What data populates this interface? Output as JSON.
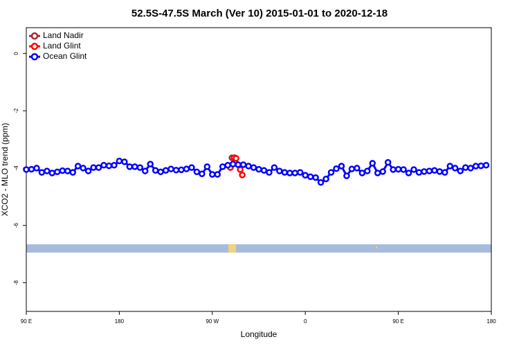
{
  "chart_data": {
    "type": "line",
    "title": "52.5S-47.5S March (Ver 10)   2015-01-01 to 2020-12-18",
    "x_label": "Longitude",
    "y_label": "XCO2 - MLO trend (ppm)",
    "xlim": [
      90,
      540
    ],
    "ylim": [
      -9,
      0.9
    ],
    "xticks": [
      {
        "value": 90,
        "label": "90 E"
      },
      180,
      {
        "value": 270,
        "label": "90 W"
      },
      {
        "value": 360,
        "label": "0"
      },
      {
        "value": 450,
        "label": "90 E"
      },
      {
        "value": 540,
        "label": "180"
      }
    ],
    "yticks": [
      0,
      -2,
      -4,
      -6,
      -8
    ],
    "legend": "top-left",
    "series": [
      {
        "name": "Land Nadir",
        "color": "#a52a2a",
        "x": [
          289,
          292
        ],
        "values": [
          -3.64,
          -3.64
        ]
      },
      {
        "name": "Land Glint",
        "color": "#ff0000",
        "x": [
          287.5,
          291,
          293,
          297,
          299
        ],
        "values": [
          -3.98,
          -3.64,
          -3.66,
          -4.05,
          -4.24
        ]
      },
      {
        "name": "Ocean Glint",
        "color": "#0000ff",
        "x": [
          90,
          95,
          100,
          105,
          110,
          115,
          120,
          125,
          130,
          135,
          140,
          145,
          150,
          155,
          160,
          165,
          170,
          175,
          180,
          185,
          190,
          195,
          200,
          205,
          210,
          215,
          220,
          225,
          230,
          235,
          240,
          245,
          250,
          255,
          260,
          265,
          270,
          275,
          280,
          285,
          290,
          295,
          300,
          305,
          310,
          315,
          320,
          325,
          330,
          335,
          340,
          345,
          350,
          355,
          360,
          365,
          370,
          375,
          380,
          385,
          390,
          395,
          400,
          405,
          410,
          415,
          420,
          425,
          430,
          435,
          440,
          445,
          450,
          455,
          460,
          465,
          470,
          475,
          480,
          485,
          490,
          495,
          500,
          505,
          510,
          515,
          520,
          525,
          530,
          535
        ],
        "values": [
          -4.05,
          -4.04,
          -4.0,
          -4.15,
          -4.1,
          -4.17,
          -4.13,
          -4.09,
          -4.1,
          -4.15,
          -3.93,
          -4.0,
          -4.1,
          -3.98,
          -3.98,
          -3.9,
          -3.92,
          -3.9,
          -3.75,
          -3.78,
          -3.95,
          -3.95,
          -3.98,
          -4.1,
          -3.86,
          -4.08,
          -4.13,
          -4.08,
          -4.03,
          -4.07,
          -4.06,
          -4.03,
          -3.98,
          -4.13,
          -4.2,
          -3.95,
          -4.22,
          -4.22,
          -3.95,
          -3.9,
          -3.86,
          -3.88,
          -3.88,
          -3.93,
          -3.98,
          -4.04,
          -4.08,
          -4.15,
          -3.98,
          -4.1,
          -4.15,
          -4.17,
          -4.17,
          -4.15,
          -4.25,
          -4.3,
          -4.33,
          -4.5,
          -4.38,
          -4.15,
          -4.02,
          -3.93,
          -4.27,
          -4.03,
          -4.0,
          -4.17,
          -4.1,
          -3.83,
          -4.17,
          -4.12,
          -3.8,
          -4.05,
          -4.04,
          -4.05,
          -4.17,
          -4.05,
          -4.15,
          -4.12,
          -4.1,
          -4.08,
          -4.12,
          -4.15,
          -3.93,
          -4.0,
          -4.1,
          -3.98,
          -4.0,
          -3.93,
          -3.92,
          -3.9
        ]
      }
    ]
  }
}
